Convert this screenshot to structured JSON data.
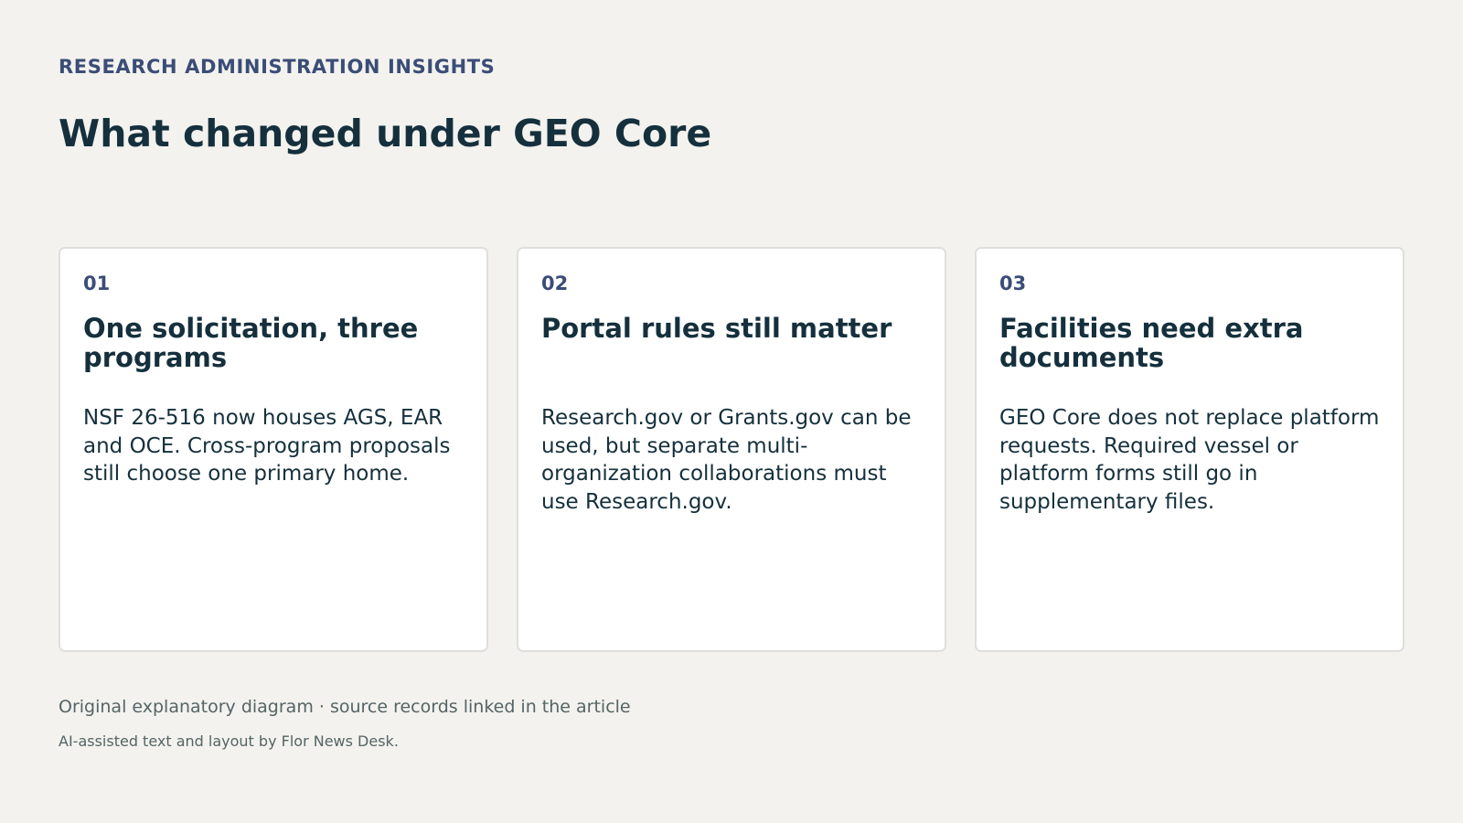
{
  "header": {
    "eyebrow": "RESEARCH ADMINISTRATION INSIGHTS",
    "title": "What changed under GEO Core"
  },
  "cards": [
    {
      "number": "01",
      "heading": "One solicitation, three programs",
      "body": "NSF 26-516 now houses AGS, EAR and OCE. Cross-program proposals still choose one primary home."
    },
    {
      "number": "02",
      "heading": "Portal rules still matter",
      "body": "Research.gov or Grants.gov can be used, but separate multi-organization collaborations must use Research.gov."
    },
    {
      "number": "03",
      "heading": "Facilities need extra documents",
      "body": "GEO Core does not replace platform requests. Required vessel or platform forms still go in supplementary files."
    }
  ],
  "footer": {
    "caption": "Original explanatory diagram · source records linked in the article",
    "credit": "AI-assisted text and layout by Flor News Desk."
  },
  "colors": {
    "background": "#f3f2ee",
    "accent": "#3b4d77",
    "text": "#15303c",
    "muted": "#556466"
  }
}
